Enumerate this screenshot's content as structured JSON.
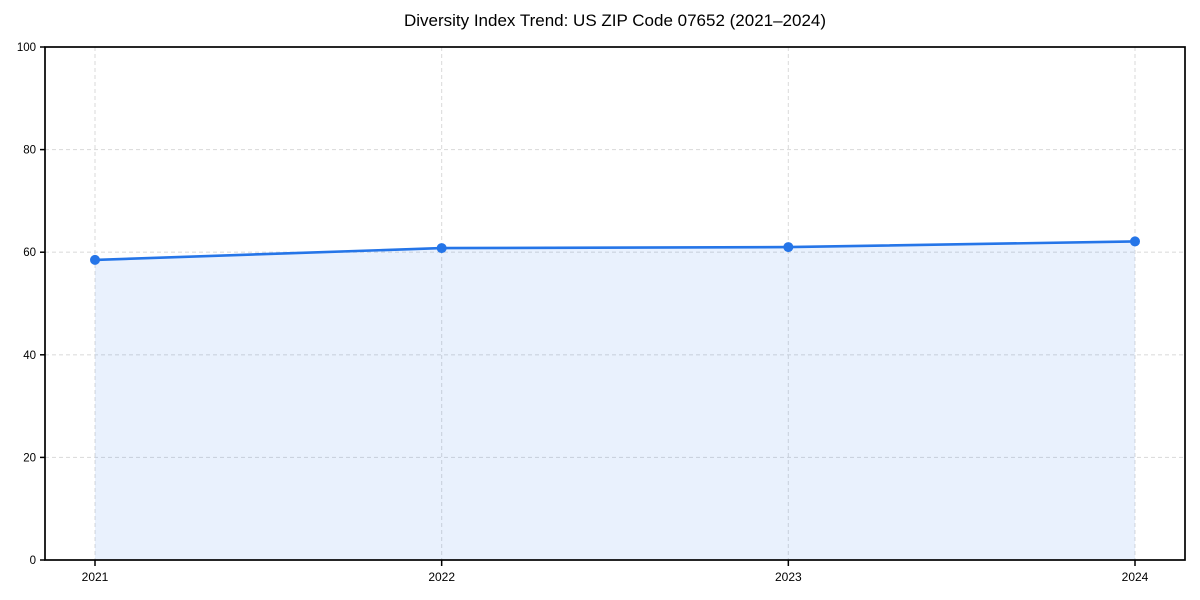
{
  "page": {
    "background": "#ffffff"
  },
  "chart_data": {
    "type": "area",
    "title": "Diversity Index Trend: US ZIP Code 07652 (2021–2024)",
    "categories": [
      "2021",
      "2022",
      "2023",
      "2024"
    ],
    "series": [
      {
        "name": "Diversity Index",
        "values": [
          58.5,
          60.8,
          61.0,
          62.1
        ]
      }
    ],
    "xlabel": "",
    "ylabel": "",
    "ylim": [
      0,
      100
    ],
    "yticks": [
      0,
      20,
      40,
      60,
      80,
      100
    ],
    "grid": "dashed",
    "legend_position": "none",
    "marker": "circle",
    "colors": {
      "line": "#2575e8",
      "fill": "rgba(37,117,232,0.10)",
      "grid": "#dddddd",
      "axis": "#000000",
      "text": "#000000",
      "background": "#ffffff"
    }
  }
}
